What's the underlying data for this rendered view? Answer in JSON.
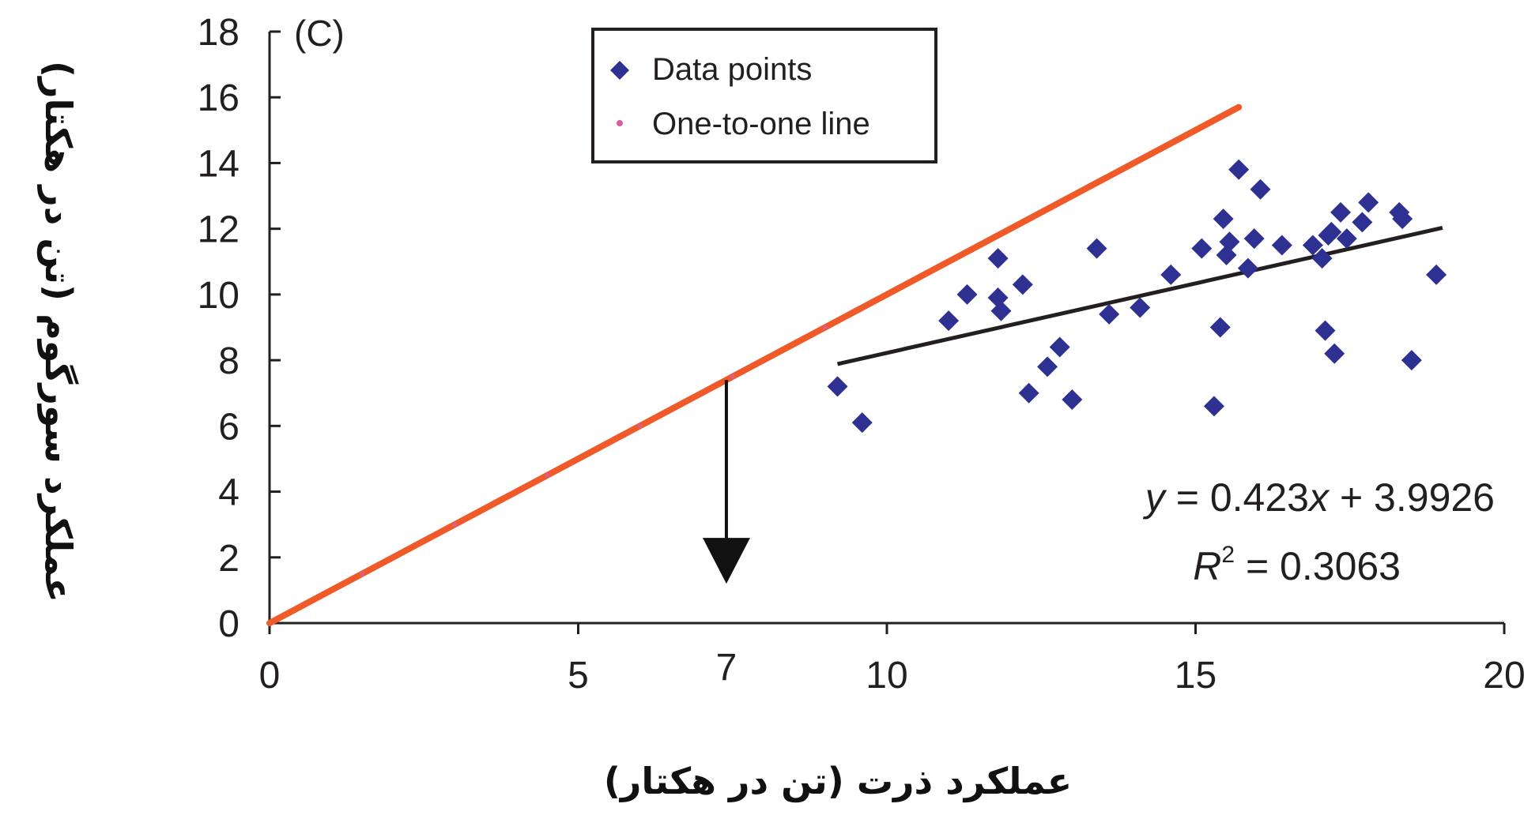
{
  "chart_data": {
    "type": "scatter",
    "panel_label": "(C)",
    "xlabel": "عملکرد ذرت (تن در هکتار)",
    "ylabel": "عملکرد سورگوم (تن در هکتار)",
    "xlim": [
      0,
      20
    ],
    "ylim": [
      0,
      18
    ],
    "xticks": [
      0,
      5,
      10,
      15,
      20
    ],
    "yticks": [
      0,
      2,
      4,
      6,
      8,
      10,
      12,
      14,
      16,
      18
    ],
    "grid": false,
    "legend": {
      "placement": "top-left",
      "entries": [
        "Data points",
        "One-to-one line"
      ]
    },
    "series": [
      {
        "name": "Data points",
        "kind": "scatter",
        "color": "#2e3192",
        "points": [
          [
            9.2,
            7.2
          ],
          [
            9.6,
            6.1
          ],
          [
            11.0,
            9.2
          ],
          [
            11.3,
            10.0
          ],
          [
            11.8,
            11.1
          ],
          [
            11.8,
            9.9
          ],
          [
            11.85,
            9.5
          ],
          [
            12.2,
            10.3
          ],
          [
            12.3,
            7.0
          ],
          [
            12.6,
            7.8
          ],
          [
            12.8,
            8.4
          ],
          [
            13.0,
            6.8
          ],
          [
            13.4,
            11.4
          ],
          [
            13.6,
            9.4
          ],
          [
            14.1,
            9.6
          ],
          [
            14.6,
            10.6
          ],
          [
            15.1,
            11.4
          ],
          [
            15.3,
            6.6
          ],
          [
            15.4,
            9.0
          ],
          [
            15.45,
            12.3
          ],
          [
            15.5,
            11.2
          ],
          [
            15.55,
            11.6
          ],
          [
            15.7,
            13.8
          ],
          [
            15.85,
            10.8
          ],
          [
            15.95,
            11.7
          ],
          [
            16.05,
            13.2
          ],
          [
            16.4,
            11.5
          ],
          [
            16.9,
            11.5
          ],
          [
            17.05,
            11.1
          ],
          [
            17.1,
            8.9
          ],
          [
            17.15,
            11.8
          ],
          [
            17.2,
            11.9
          ],
          [
            17.25,
            8.2
          ],
          [
            17.35,
            12.5
          ],
          [
            17.45,
            11.7
          ],
          [
            17.7,
            12.2
          ],
          [
            17.8,
            12.8
          ],
          [
            18.3,
            12.5
          ],
          [
            18.35,
            12.3
          ],
          [
            18.5,
            8.0
          ],
          [
            18.9,
            10.6
          ]
        ]
      },
      {
        "name": "One-to-one line",
        "kind": "line",
        "color": "#f05a28",
        "marker_color": "#d75fa0",
        "x": [
          0,
          15.7
        ],
        "y": [
          0,
          15.7
        ]
      },
      {
        "name": "trendline",
        "kind": "line",
        "color": "#231f20",
        "slope": 0.423,
        "intercept": 3.9926,
        "x_range": [
          9.2,
          19.0
        ]
      }
    ],
    "annotations": {
      "arrow": {
        "x": 7.4,
        "from_y": 7.4,
        "to_y": 1.2,
        "label": "7"
      },
      "equation": "= 0.423",
      "equation_y": "y",
      "equation_x": "x",
      "equation_tail": "+ 3.9926",
      "r2_prefix": "R",
      "r2_exp": "2",
      "r2_tail": " = 0.3063"
    }
  }
}
